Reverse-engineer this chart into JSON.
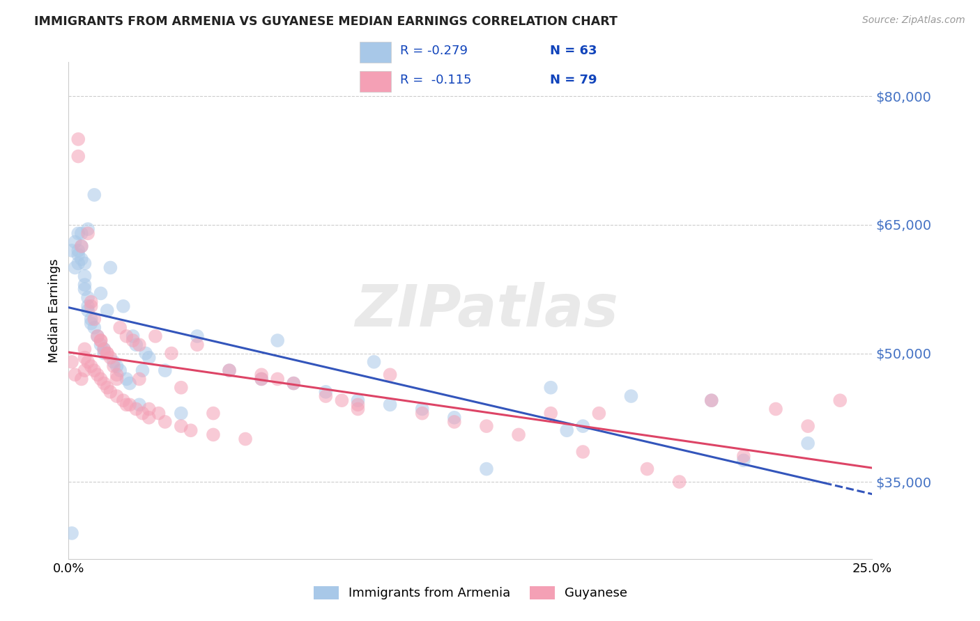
{
  "title": "IMMIGRANTS FROM ARMENIA VS GUYANESE MEDIAN EARNINGS CORRELATION CHART",
  "source": "Source: ZipAtlas.com",
  "ylabel": "Median Earnings",
  "ytick_values": [
    35000,
    50000,
    65000,
    80000
  ],
  "ytick_labels": [
    "$35,000",
    "$50,000",
    "$65,000",
    "$80,000"
  ],
  "ymin": 26000,
  "ymax": 84000,
  "xmin": 0.0,
  "xmax": 0.25,
  "xtick_labels": [
    "0.0%",
    "25.0%"
  ],
  "legend_R_blue": "R = -0.279",
  "legend_N_blue": "N = 63",
  "legend_R_pink": "R =  -0.115",
  "legend_N_pink": "N = 79",
  "label_blue": "Immigrants from Armenia",
  "label_pink": "Guyanese",
  "blue_color": "#A8C8E8",
  "pink_color": "#F4A0B5",
  "trend_blue": "#3355BB",
  "trend_pink": "#DD4466",
  "ytick_color": "#4472C4",
  "blue_x": [
    0.001,
    0.002,
    0.002,
    0.003,
    0.003,
    0.003,
    0.004,
    0.004,
    0.004,
    0.005,
    0.005,
    0.005,
    0.005,
    0.006,
    0.006,
    0.006,
    0.007,
    0.007,
    0.008,
    0.008,
    0.009,
    0.01,
    0.01,
    0.011,
    0.011,
    0.012,
    0.013,
    0.014,
    0.015,
    0.016,
    0.017,
    0.018,
    0.019,
    0.02,
    0.021,
    0.022,
    0.023,
    0.024,
    0.025,
    0.03,
    0.035,
    0.04,
    0.05,
    0.06,
    0.065,
    0.07,
    0.08,
    0.09,
    0.095,
    0.1,
    0.11,
    0.12,
    0.13,
    0.15,
    0.155,
    0.16,
    0.175,
    0.2,
    0.21,
    0.23,
    0.001,
    0.003,
    0.006
  ],
  "blue_y": [
    29000,
    63000,
    60000,
    64000,
    62000,
    60500,
    64000,
    62500,
    61000,
    60500,
    59000,
    58000,
    57500,
    56500,
    55500,
    55000,
    54000,
    53500,
    68500,
    53000,
    52000,
    57000,
    51000,
    50500,
    50000,
    55000,
    60000,
    49000,
    48500,
    48000,
    55500,
    47000,
    46500,
    52000,
    51000,
    44000,
    48000,
    50000,
    49500,
    48000,
    43000,
    52000,
    48000,
    47000,
    51500,
    46500,
    45500,
    44500,
    49000,
    44000,
    43500,
    42500,
    36500,
    46000,
    41000,
    41500,
    45000,
    44500,
    37500,
    39500,
    62000,
    61500,
    64500
  ],
  "pink_x": [
    0.001,
    0.002,
    0.003,
    0.004,
    0.004,
    0.005,
    0.005,
    0.006,
    0.006,
    0.007,
    0.007,
    0.008,
    0.008,
    0.009,
    0.009,
    0.01,
    0.01,
    0.011,
    0.011,
    0.012,
    0.012,
    0.013,
    0.013,
    0.014,
    0.015,
    0.015,
    0.016,
    0.017,
    0.018,
    0.019,
    0.02,
    0.021,
    0.022,
    0.023,
    0.025,
    0.027,
    0.028,
    0.03,
    0.032,
    0.035,
    0.038,
    0.04,
    0.045,
    0.05,
    0.055,
    0.06,
    0.065,
    0.07,
    0.08,
    0.085,
    0.09,
    0.1,
    0.11,
    0.12,
    0.13,
    0.14,
    0.16,
    0.165,
    0.18,
    0.19,
    0.2,
    0.21,
    0.22,
    0.23,
    0.24,
    0.003,
    0.005,
    0.007,
    0.01,
    0.012,
    0.015,
    0.018,
    0.022,
    0.025,
    0.035,
    0.045,
    0.06,
    0.09,
    0.15
  ],
  "pink_y": [
    49000,
    47500,
    75000,
    47000,
    62500,
    50500,
    49500,
    64000,
    49000,
    55500,
    48500,
    54000,
    48000,
    52000,
    47500,
    51500,
    47000,
    50500,
    46500,
    50000,
    46000,
    49500,
    45500,
    48500,
    47500,
    45000,
    53000,
    44500,
    52000,
    44000,
    51500,
    43500,
    51000,
    43000,
    42500,
    52000,
    43000,
    42000,
    50000,
    41500,
    41000,
    51000,
    40500,
    48000,
    40000,
    47500,
    47000,
    46500,
    45000,
    44500,
    44000,
    47500,
    43000,
    42000,
    41500,
    40500,
    38500,
    43000,
    36500,
    35000,
    44500,
    38000,
    43500,
    41500,
    44500,
    73000,
    48000,
    56000,
    51500,
    50000,
    47000,
    44000,
    47000,
    43500,
    46000,
    43000,
    47000,
    43500,
    43000
  ]
}
